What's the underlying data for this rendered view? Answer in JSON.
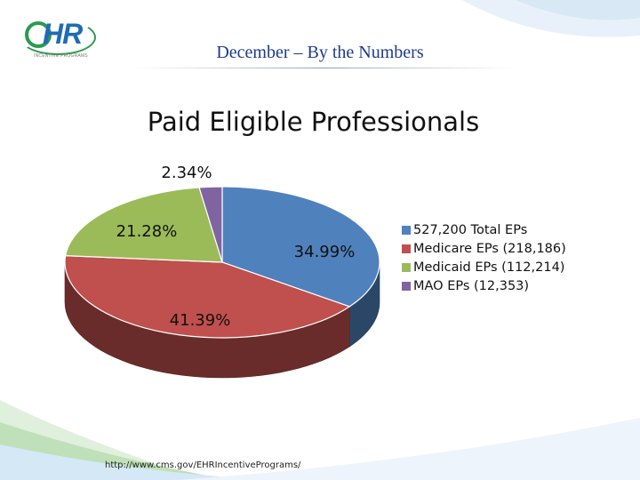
{
  "header": {
    "subtitle": "December – By the Numbers",
    "logo_text": "eHR",
    "logo_tagline": "INCENTIVE PROGRAMS"
  },
  "footer": {
    "url": "http://www.cms.gov/EHRIncentivePrograms/"
  },
  "chart_data": {
    "type": "pie",
    "title": "Paid Eligible Professionals",
    "slices": [
      {
        "label": "527,200 Total EPs",
        "value": 34.99,
        "display": "34.99%",
        "color": "#4f81bd"
      },
      {
        "label": "Medicare EPs (218,186)",
        "value": 41.39,
        "display": "41.39%",
        "color": "#c0504d"
      },
      {
        "label": "Medicaid EPs (112,214)",
        "value": 21.28,
        "display": "21.28%",
        "color": "#9bbb59"
      },
      {
        "label": "MAO EPs (12,353)",
        "value": 2.34,
        "display": "2.34%",
        "color": "#8064a2"
      }
    ],
    "legend_position": "right"
  },
  "colors": {
    "accent_green": "#2a9a4e",
    "accent_blue": "#1f6bb5",
    "subtitle": "#1e3a8a"
  }
}
